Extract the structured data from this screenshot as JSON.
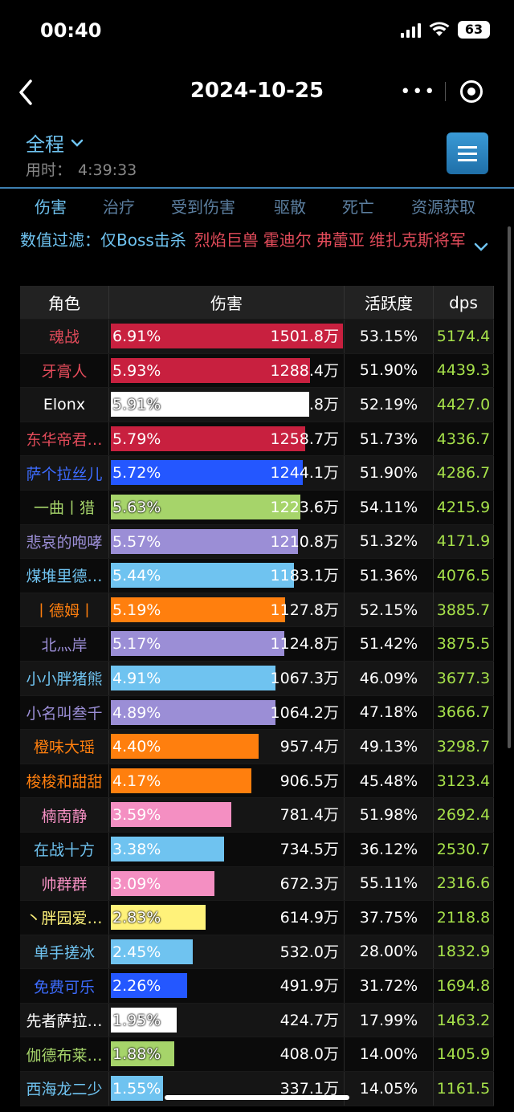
{
  "status": {
    "time": "00:40",
    "battery": "63"
  },
  "nav": {
    "back": "‹",
    "title": "2024-10-25",
    "more": "•••"
  },
  "range": {
    "label": "全程",
    "elapsed_label": "用时：",
    "elapsed_value": "4:39:33"
  },
  "tabs": [
    "伤害",
    "治疗",
    "受到伤害",
    "驱散",
    "死亡",
    "资源获取"
  ],
  "active_tab": 0,
  "filter": {
    "label": "数值过滤：",
    "boss_only": "仅Boss击杀",
    "bosses": [
      "烈焰巨兽",
      "霍迪尔",
      "弗蕾亚",
      "维扎克斯将军"
    ]
  },
  "table": {
    "headers": [
      "角色",
      "伤害",
      "活跃度",
      "dps"
    ],
    "rows": [
      {
        "name": "魂战",
        "name_color": "#e24b5a",
        "pct": "6.91%",
        "amount": "1501.8万",
        "share": 1.0,
        "bar_color": "#c8203f",
        "activity": "53.15%",
        "dps": "5174.4"
      },
      {
        "name": "牙膏人",
        "name_color": "#e24b5a",
        "pct": "5.93%",
        "amount": "1288.4万",
        "share": 0.858,
        "bar_color": "#c8203f",
        "activity": "51.90%",
        "dps": "4439.3"
      },
      {
        "name": "Elonx",
        "name_color": "#ffffff",
        "pct": "5.91%",
        "amount": "1284.8万",
        "share": 0.855,
        "bar_color": "#ffffff",
        "activity": "52.19%",
        "dps": "4427.0"
      },
      {
        "name": "东华帝君…",
        "name_color": "#e24b5a",
        "pct": "5.79%",
        "amount": "1258.7万",
        "share": 0.838,
        "bar_color": "#c8203f",
        "activity": "51.73%",
        "dps": "4336.7"
      },
      {
        "name": "萨个拉丝儿",
        "name_color": "#3d6cff",
        "pct": "5.72%",
        "amount": "1244.1万",
        "share": 0.828,
        "bar_color": "#2457ff",
        "activity": "51.90%",
        "dps": "4286.7"
      },
      {
        "name": "一曲丨猎",
        "name_color": "#a6d46a",
        "pct": "5.63%",
        "amount": "1223.6万",
        "share": 0.815,
        "bar_color": "#a6d46a",
        "activity": "54.11%",
        "dps": "4215.9"
      },
      {
        "name": "悲哀的咆哮",
        "name_color": "#9b8ed6",
        "pct": "5.57%",
        "amount": "1210.8万",
        "share": 0.806,
        "bar_color": "#9b8ed6",
        "activity": "51.32%",
        "dps": "4171.9"
      },
      {
        "name": "煤堆里德…",
        "name_color": "#6fc3f0",
        "pct": "5.44%",
        "amount": "1183.1万",
        "share": 0.788,
        "bar_color": "#6fc3f0",
        "activity": "51.36%",
        "dps": "4076.5"
      },
      {
        "name": "丨德姆丨",
        "name_color": "#ff7f0e",
        "pct": "5.19%",
        "amount": "1127.8万",
        "share": 0.751,
        "bar_color": "#ff7f0e",
        "activity": "52.15%",
        "dps": "3885.7"
      },
      {
        "name": "北灬岸",
        "name_color": "#9b8ed6",
        "pct": "5.17%",
        "amount": "1124.8万",
        "share": 0.749,
        "bar_color": "#9b8ed6",
        "activity": "51.42%",
        "dps": "3875.5"
      },
      {
        "name": "小小胖猪熊",
        "name_color": "#6fc3f0",
        "pct": "4.91%",
        "amount": "1067.3万",
        "share": 0.711,
        "bar_color": "#6fc3f0",
        "activity": "46.09%",
        "dps": "3677.3"
      },
      {
        "name": "小名叫叁千",
        "name_color": "#9b8ed6",
        "pct": "4.89%",
        "amount": "1064.2万",
        "share": 0.709,
        "bar_color": "#9b8ed6",
        "activity": "47.18%",
        "dps": "3666.7"
      },
      {
        "name": "橙味大瑶",
        "name_color": "#ff7f0e",
        "pct": "4.40%",
        "amount": "957.4万",
        "share": 0.637,
        "bar_color": "#ff7f0e",
        "activity": "49.13%",
        "dps": "3298.7"
      },
      {
        "name": "梭梭和甜甜",
        "name_color": "#ff7f0e",
        "pct": "4.17%",
        "amount": "906.5万",
        "share": 0.604,
        "bar_color": "#ff7f0e",
        "activity": "45.48%",
        "dps": "3123.4"
      },
      {
        "name": "楠南静",
        "name_color": "#f48fc2",
        "pct": "3.59%",
        "amount": "781.4万",
        "share": 0.52,
        "bar_color": "#f48fc2",
        "activity": "51.98%",
        "dps": "2692.4"
      },
      {
        "name": "在战十方",
        "name_color": "#6fc3f0",
        "pct": "3.38%",
        "amount": "734.5万",
        "share": 0.489,
        "bar_color": "#6fc3f0",
        "activity": "36.12%",
        "dps": "2530.7"
      },
      {
        "name": "帅群群",
        "name_color": "#f48fc2",
        "pct": "3.09%",
        "amount": "672.3万",
        "share": 0.448,
        "bar_color": "#f48fc2",
        "activity": "55.11%",
        "dps": "2316.6"
      },
      {
        "name": "丶胖园爱…",
        "name_color": "#fff27a",
        "pct": "2.83%",
        "amount": "614.9万",
        "share": 0.409,
        "bar_color": "#fff27a",
        "activity": "37.75%",
        "dps": "2118.8"
      },
      {
        "name": "单手搓冰",
        "name_color": "#6fc3f0",
        "pct": "2.45%",
        "amount": "532.0万",
        "share": 0.354,
        "bar_color": "#6fc3f0",
        "activity": "28.00%",
        "dps": "1832.9"
      },
      {
        "name": "免费可乐",
        "name_color": "#3d6cff",
        "pct": "2.26%",
        "amount": "491.9万",
        "share": 0.328,
        "bar_color": "#2457ff",
        "activity": "31.72%",
        "dps": "1694.8"
      },
      {
        "name": "先者萨拉…",
        "name_color": "#ffffff",
        "pct": "1.95%",
        "amount": "424.7万",
        "share": 0.283,
        "bar_color": "#ffffff",
        "activity": "17.99%",
        "dps": "1463.2"
      },
      {
        "name": "伽德布莱…",
        "name_color": "#a6d46a",
        "pct": "1.88%",
        "amount": "408.0万",
        "share": 0.272,
        "bar_color": "#a6d46a",
        "activity": "14.00%",
        "dps": "1405.9"
      },
      {
        "name": "西海龙二少",
        "name_color": "#6fc3f0",
        "pct": "1.55%",
        "amount": "337.1万",
        "share": 0.224,
        "bar_color": "#6fc3f0",
        "activity": "14.05%",
        "dps": "1161.5"
      }
    ]
  }
}
